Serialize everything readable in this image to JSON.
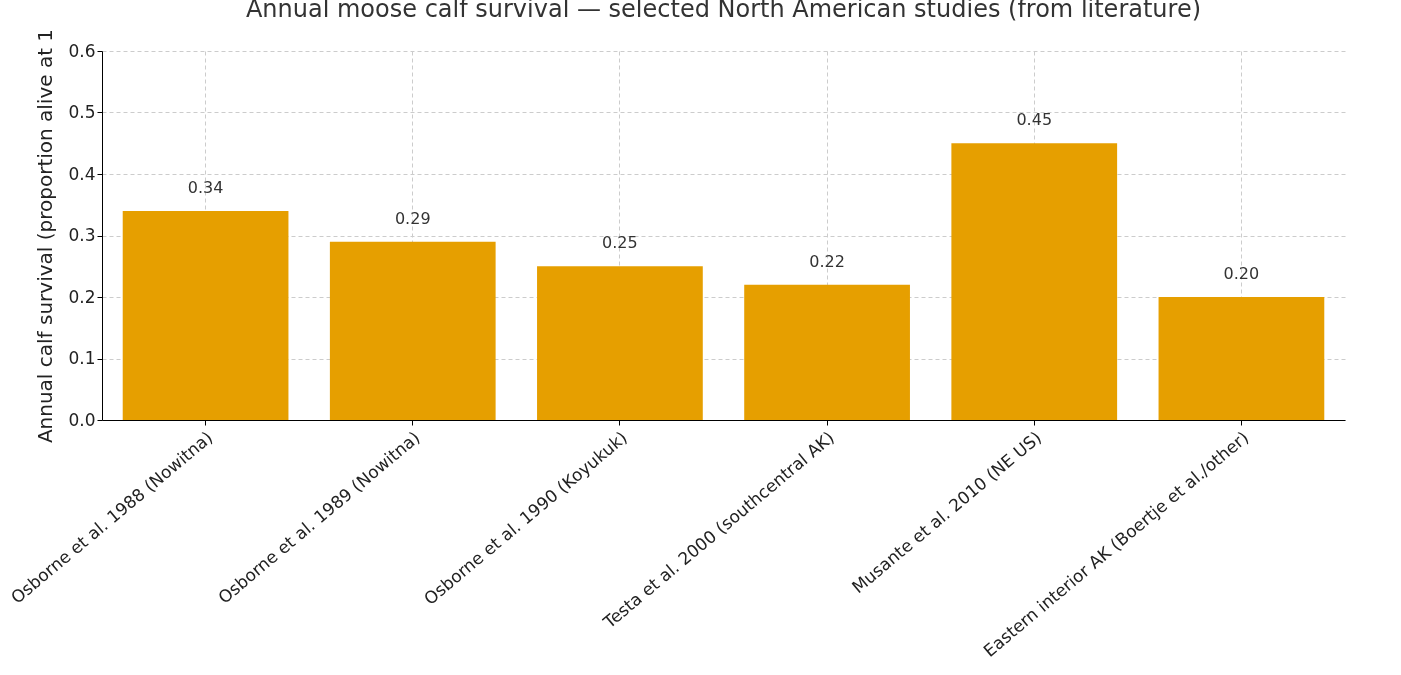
{
  "chart_data": {
    "type": "bar",
    "title": "Annual moose calf survival — selected North American studies (from literature)",
    "ylabel": "Annual calf survival (proportion alive at 1",
    "categories": [
      "Osborne et al. 1988 (Nowitna)",
      "Osborne et al. 1989 (Nowitna)",
      "Osborne et al. 1990 (Koyukuk)",
      "Testa et al. 2000 (southcentral AK)",
      "Musante et al. 2010 (NE US)",
      "Eastern interior AK (Boertje et al./other)"
    ],
    "values": [
      0.34,
      0.29,
      0.25,
      0.22,
      0.45,
      0.2
    ],
    "value_labels": [
      "0.34",
      "0.29",
      "0.25",
      "0.22",
      "0.45",
      "0.20"
    ],
    "color": "#e69f00",
    "ylim": [
      0,
      0.6
    ],
    "yticks": [
      {
        "value": 0,
        "label": "0.0"
      },
      {
        "value": 0.1,
        "label": "0.1"
      },
      {
        "value": 0.2,
        "label": "0.2"
      },
      {
        "value": 0.3,
        "label": "0.3"
      },
      {
        "value": 0.4,
        "label": "0.4"
      },
      {
        "value": 0.5,
        "label": "0.5"
      },
      {
        "value": 0.6,
        "label": "0.6"
      }
    ],
    "grid": true
  }
}
